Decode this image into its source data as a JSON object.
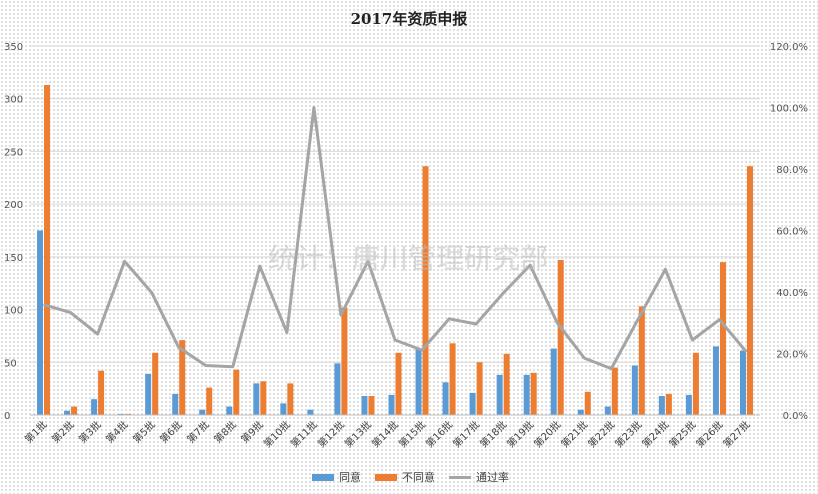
{
  "chart_data": {
    "type": "bar",
    "title": "2017年资质申报",
    "categories": [
      "第1批",
      "第2批",
      "第3批",
      "第4批",
      "第5批",
      "第6批",
      "第7批",
      "第8批",
      "第9批",
      "第10批",
      "第11批",
      "第12批",
      "第13批",
      "第14批",
      "第15批",
      "第16批",
      "第17批",
      "第18批",
      "第19批",
      "第20批",
      "第21批",
      "第22批",
      "第23批",
      "第24批",
      "第25批",
      "第26批",
      "第27批"
    ],
    "series": [
      {
        "name": "同意",
        "kind": "bar",
        "axis": "left",
        "color": "#5B9BD5",
        "values": [
          175,
          4,
          15,
          1,
          39,
          20,
          5,
          8,
          30,
          11,
          5,
          49,
          18,
          19,
          63,
          31,
          21,
          38,
          38,
          63,
          5,
          8,
          47,
          18,
          19,
          65,
          61
        ]
      },
      {
        "name": "不同意",
        "kind": "bar",
        "axis": "left",
        "color": "#ED7D31",
        "values": [
          313,
          8,
          42,
          1,
          59,
          71,
          26,
          43,
          32,
          30,
          0,
          102,
          18,
          59,
          236,
          68,
          50,
          58,
          40,
          147,
          22,
          45,
          103,
          20,
          59,
          145,
          236
        ]
      },
      {
        "name": "通过率",
        "kind": "line",
        "axis": "right",
        "color": "#A5A5A5",
        "values": [
          0.359,
          0.333,
          0.263,
          0.5,
          0.398,
          0.22,
          0.161,
          0.157,
          0.484,
          0.268,
          1.0,
          0.325,
          0.5,
          0.244,
          0.211,
          0.313,
          0.296,
          0.396,
          0.487,
          0.3,
          0.185,
          0.151,
          0.313,
          0.474,
          0.244,
          0.31,
          0.205
        ]
      }
    ],
    "ylim_left": [
      0,
      350
    ],
    "yticks_left": [
      "0",
      "50",
      "100",
      "150",
      "200",
      "250",
      "300",
      "350"
    ],
    "ylim_right": [
      0,
      1.2
    ],
    "yticks_right": [
      "0.0%",
      "20.0%",
      "40.0%",
      "60.0%",
      "80.0%",
      "100.0%",
      "120.0%"
    ],
    "grid": true,
    "legend_position": "bottom",
    "watermark": "统计：唐川管理研究部"
  }
}
